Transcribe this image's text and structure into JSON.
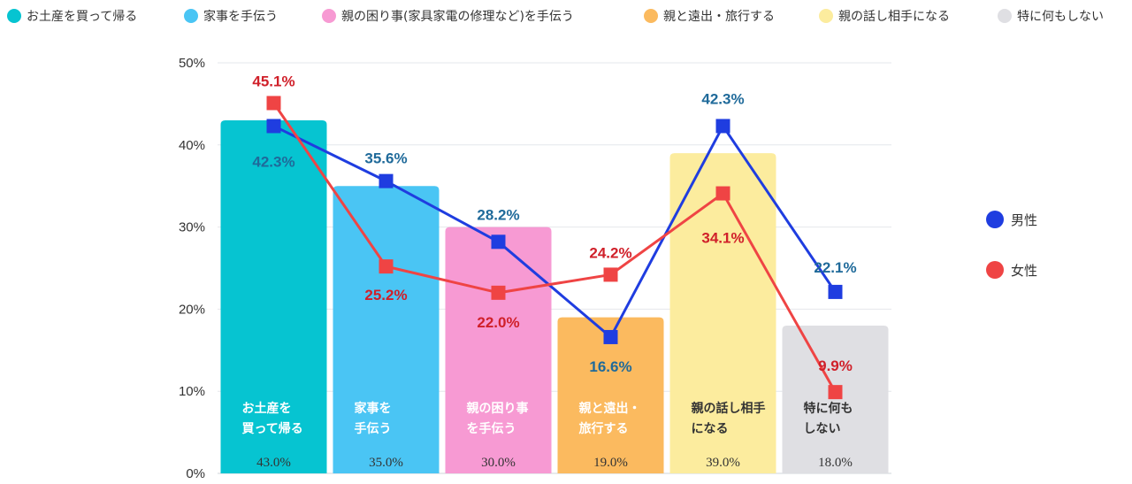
{
  "legend": [
    {
      "label": "お土産を買って帰る",
      "color": "#06c4d1"
    },
    {
      "label": "家事を手伝う",
      "color": "#4ac5f4"
    },
    {
      "label": "親の困り事(家具家電の修理など)を手伝う",
      "color": "#f79ad3"
    },
    {
      "label": "親と遠出・旅行する",
      "color": "#fbba5f"
    },
    {
      "label": "親の話し相手になる",
      "color": "#fcec9e"
    },
    {
      "label": "特に何もしない",
      "color": "#dfdfe3"
    }
  ],
  "chart_data": {
    "type": "bar",
    "ylim": [
      0,
      50
    ],
    "yticks": [
      0,
      10,
      20,
      30,
      40,
      50
    ],
    "ytick_labels": [
      "0%",
      "10%",
      "20%",
      "30%",
      "40%",
      "50%"
    ],
    "grid": true,
    "categories": [
      {
        "lines": [
          "お土産を",
          "買って帰る"
        ],
        "value": 43.0,
        "value_label": "43.0%",
        "color": "#06c4d1",
        "text_color": "#ffffff"
      },
      {
        "lines": [
          "家事を",
          "手伝う"
        ],
        "value": 35.0,
        "value_label": "35.0%",
        "color": "#4ac5f4",
        "text_color": "#ffffff"
      },
      {
        "lines": [
          "親の困り事",
          "を手伝う"
        ],
        "value": 30.0,
        "value_label": "30.0%",
        "color": "#f79ad3",
        "text_color": "#ffffff"
      },
      {
        "lines": [
          "親と遠出・",
          "旅行する"
        ],
        "value": 19.0,
        "value_label": "19.0%",
        "color": "#fbba5f",
        "text_color": "#ffffff"
      },
      {
        "lines": [
          "親の話し相手",
          "になる"
        ],
        "value": 39.0,
        "value_label": "39.0%",
        "color": "#fcec9e",
        "text_color": "#333333"
      },
      {
        "lines": [
          "特に何も",
          "しない"
        ],
        "value": 18.0,
        "value_label": "18.0%",
        "color": "#dfdfe3",
        "text_color": "#333333"
      }
    ],
    "series": [
      {
        "name": "男性",
        "color": "#1f3de0",
        "label_color": "#1f6a9a",
        "values": [
          42.3,
          35.6,
          28.2,
          16.6,
          42.3,
          22.1
        ],
        "labels": [
          "42.3%",
          "35.6%",
          "28.2%",
          "16.6%",
          "42.3%",
          "22.1%"
        ]
      },
      {
        "name": "女性",
        "color": "#ef4444",
        "label_color": "#d0202a",
        "values": [
          45.1,
          25.2,
          22.0,
          24.2,
          34.1,
          9.9
        ],
        "labels": [
          "45.1%",
          "25.2%",
          "22.0%",
          "24.2%",
          "34.1%",
          "9.9%"
        ]
      }
    ]
  }
}
